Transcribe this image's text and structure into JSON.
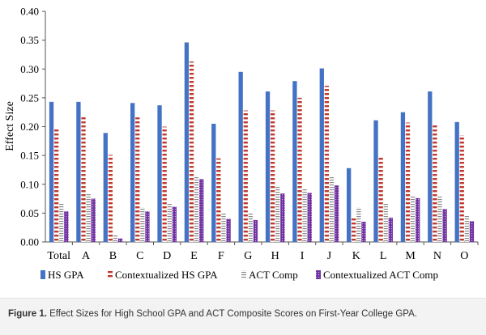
{
  "chart_data": {
    "type": "bar",
    "title": "",
    "xlabel": "",
    "ylabel": "Effect Size",
    "ylim": [
      0,
      0.4
    ],
    "yticks": [
      "0.00",
      "0.05",
      "0.10",
      "0.15",
      "0.20",
      "0.25",
      "0.30",
      "0.35",
      "0.40"
    ],
    "categories": [
      "Total",
      "A",
      "B",
      "C",
      "D",
      "E",
      "F",
      "G",
      "H",
      "I",
      "J",
      "K",
      "L",
      "M",
      "N",
      "O"
    ],
    "series": [
      {
        "name": "HS GPA",
        "color": "#4472C4",
        "pattern": "solid",
        "values": [
          0.243,
          0.243,
          0.189,
          0.241,
          0.237,
          0.346,
          0.205,
          0.295,
          0.261,
          0.279,
          0.301,
          0.128,
          0.211,
          0.225,
          0.261,
          0.208
        ]
      },
      {
        "name": "Contextualized HS GPA",
        "color": "#C0392B",
        "pattern": "diagonal",
        "values": [
          0.198,
          0.218,
          0.151,
          0.216,
          0.2,
          0.313,
          0.145,
          0.228,
          0.228,
          0.25,
          0.271,
          0.043,
          0.146,
          0.207,
          0.204,
          0.185
        ]
      },
      {
        "name": "ACT Comp",
        "color": "#7F7F7F",
        "pattern": "horizontal",
        "values": [
          0.068,
          0.083,
          0.012,
          0.06,
          0.068,
          0.113,
          0.051,
          0.05,
          0.098,
          0.093,
          0.113,
          0.06,
          0.068,
          0.079,
          0.08,
          0.045
        ]
      },
      {
        "name": "Contextualized ACT Comp",
        "color": "#7030A0",
        "pattern": "checker",
        "values": [
          0.053,
          0.075,
          0.006,
          0.053,
          0.061,
          0.109,
          0.04,
          0.038,
          0.084,
          0.085,
          0.098,
          0.035,
          0.042,
          0.076,
          0.057,
          0.036
        ]
      }
    ],
    "legend_position": "bottom"
  },
  "caption": {
    "label": "Figure 1.",
    "text": "Effect Sizes for High School GPA and ACT Composite Scores on First-Year College GPA."
  }
}
